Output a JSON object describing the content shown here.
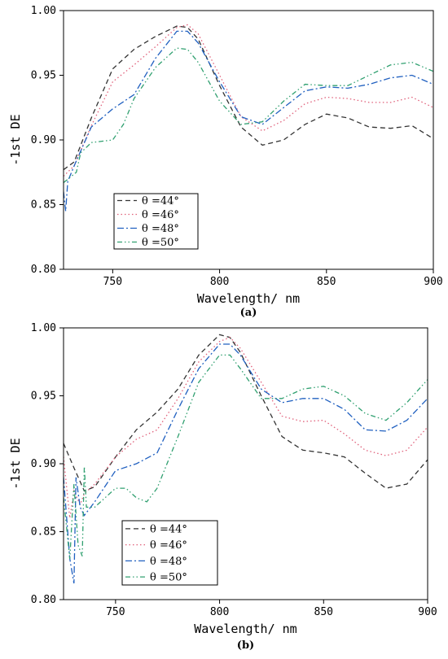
{
  "chart_data": [
    {
      "type": "line",
      "caption": "(a)",
      "xlabel": "Wavelength/ nm",
      "ylabel": "-1st DE",
      "xlim": [
        727,
        900
      ],
      "ylim": [
        0.8,
        1.0
      ],
      "xticks": [
        750,
        800,
        850,
        900
      ],
      "yticks": [
        "0.80",
        "0.85",
        "0.90",
        "0.95",
        "1.00"
      ],
      "legend_position": "lower-left",
      "series": [
        {
          "name": "θ =44°",
          "color": "#333333",
          "dash": "6,4",
          "x": [
            727,
            732,
            740,
            750,
            760,
            770,
            780,
            785,
            790,
            800,
            810,
            820,
            830,
            840,
            850,
            860,
            870,
            880,
            890,
            900
          ],
          "y": [
            0.877,
            0.883,
            0.917,
            0.955,
            0.97,
            0.98,
            0.988,
            0.987,
            0.978,
            0.942,
            0.91,
            0.896,
            0.9,
            0.912,
            0.92,
            0.917,
            0.91,
            0.909,
            0.911,
            0.901
          ]
        },
        {
          "name": "θ =46°",
          "color": "#e0607a",
          "dash": "1.5,3",
          "x": [
            727,
            732,
            740,
            750,
            760,
            770,
            780,
            785,
            790,
            800,
            810,
            820,
            830,
            840,
            850,
            860,
            870,
            880,
            890,
            900
          ],
          "y": [
            0.872,
            0.88,
            0.911,
            0.945,
            0.958,
            0.972,
            0.987,
            0.989,
            0.982,
            0.95,
            0.918,
            0.907,
            0.915,
            0.928,
            0.933,
            0.932,
            0.929,
            0.929,
            0.933,
            0.925
          ]
        },
        {
          "name": "θ =48°",
          "color": "#2060c0",
          "dash": "8,3,2,3",
          "x": [
            727,
            728,
            729,
            732,
            740,
            750,
            760,
            770,
            780,
            785,
            790,
            800,
            810,
            820,
            830,
            840,
            850,
            860,
            870,
            880,
            890,
            900
          ],
          "y": [
            0.86,
            0.845,
            0.868,
            0.88,
            0.91,
            0.924,
            0.935,
            0.963,
            0.984,
            0.984,
            0.975,
            0.945,
            0.918,
            0.912,
            0.925,
            0.938,
            0.941,
            0.94,
            0.943,
            0.948,
            0.95,
            0.943
          ]
        },
        {
          "name": "θ =50°",
          "color": "#30a070",
          "dash": "6,3,1.5,3,1.5,3",
          "x": [
            727,
            733,
            735,
            740,
            750,
            755,
            760,
            770,
            780,
            785,
            790,
            800,
            810,
            820,
            830,
            840,
            850,
            860,
            870,
            880,
            890,
            900
          ],
          "y": [
            0.867,
            0.875,
            0.89,
            0.898,
            0.9,
            0.912,
            0.932,
            0.956,
            0.971,
            0.97,
            0.96,
            0.93,
            0.912,
            0.914,
            0.93,
            0.943,
            0.942,
            0.942,
            0.95,
            0.958,
            0.96,
            0.953
          ]
        }
      ]
    },
    {
      "type": "line",
      "caption": "(b)",
      "xlabel": "Wavelength/ nm",
      "ylabel": "-1st DE",
      "xlim": [
        725,
        900
      ],
      "ylim": [
        0.8,
        1.0
      ],
      "xticks": [
        750,
        800,
        850,
        900
      ],
      "yticks": [
        "0.80",
        "0.85",
        "0.90",
        "0.95",
        "1.00"
      ],
      "legend_position": "lower-left",
      "series": [
        {
          "name": "θ =44°",
          "color": "#333333",
          "dash": "6,4",
          "x": [
            725,
            730,
            735,
            740,
            750,
            760,
            770,
            780,
            790,
            800,
            805,
            810,
            820,
            830,
            840,
            850,
            860,
            870,
            880,
            890,
            900
          ],
          "y": [
            0.915,
            0.897,
            0.88,
            0.883,
            0.905,
            0.925,
            0.938,
            0.955,
            0.98,
            0.995,
            0.993,
            0.982,
            0.95,
            0.92,
            0.91,
            0.908,
            0.905,
            0.893,
            0.882,
            0.885,
            0.903
          ]
        },
        {
          "name": "θ =46°",
          "color": "#e0607a",
          "dash": "1.5,3",
          "x": [
            725,
            728,
            730,
            733,
            735,
            740,
            750,
            760,
            770,
            780,
            790,
            800,
            805,
            810,
            820,
            830,
            840,
            850,
            860,
            870,
            880,
            890,
            900
          ],
          "y": [
            0.905,
            0.86,
            0.88,
            0.87,
            0.878,
            0.885,
            0.905,
            0.918,
            0.925,
            0.948,
            0.975,
            0.99,
            0.993,
            0.985,
            0.96,
            0.935,
            0.931,
            0.932,
            0.922,
            0.91,
            0.906,
            0.91,
            0.927
          ]
        },
        {
          "name": "θ =48°",
          "color": "#2060c0",
          "dash": "8,3,2,3",
          "x": [
            725,
            728,
            730,
            731,
            733,
            735,
            740,
            750,
            760,
            770,
            780,
            790,
            800,
            805,
            810,
            820,
            830,
            840,
            850,
            860,
            870,
            880,
            890,
            900
          ],
          "y": [
            0.89,
            0.83,
            0.812,
            0.89,
            0.868,
            0.862,
            0.872,
            0.895,
            0.9,
            0.908,
            0.94,
            0.97,
            0.988,
            0.988,
            0.98,
            0.955,
            0.945,
            0.948,
            0.948,
            0.94,
            0.925,
            0.924,
            0.932,
            0.948
          ]
        },
        {
          "name": "θ =50°",
          "color": "#30a070",
          "dash": "6,3,1.5,3,1.5,3",
          "x": [
            725,
            728,
            730,
            732,
            734,
            735,
            736,
            740,
            750,
            755,
            760,
            765,
            770,
            780,
            790,
            800,
            805,
            810,
            820,
            830,
            840,
            850,
            860,
            870,
            880,
            890,
            900
          ],
          "y": [
            0.875,
            0.83,
            0.885,
            0.84,
            0.832,
            0.898,
            0.868,
            0.868,
            0.882,
            0.882,
            0.875,
            0.872,
            0.882,
            0.92,
            0.96,
            0.98,
            0.98,
            0.97,
            0.948,
            0.948,
            0.955,
            0.957,
            0.95,
            0.937,
            0.932,
            0.945,
            0.962
          ]
        }
      ]
    }
  ]
}
